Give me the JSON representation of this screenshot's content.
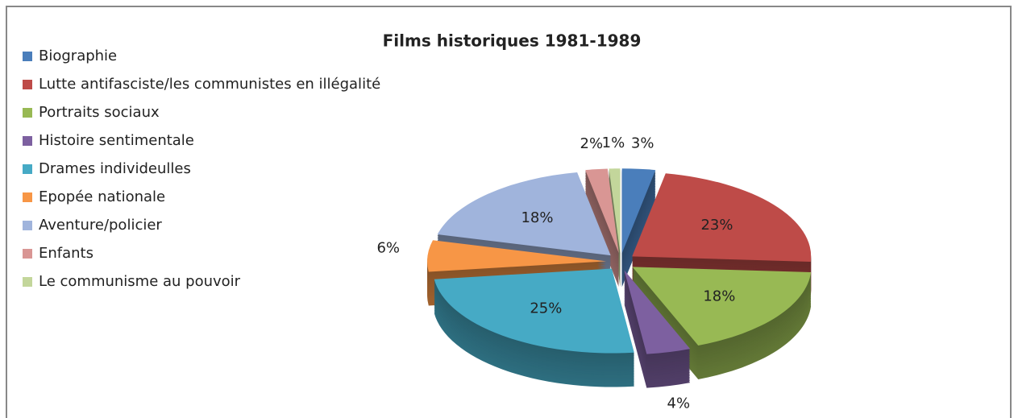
{
  "chart_data": {
    "type": "pie",
    "title": "Films historiques 1981-1989",
    "categories": [
      "Biographie",
      "Lutte antifasciste/les communistes en illégalité",
      "Portraits sociaux",
      "Histoire sentimentale",
      "Drames individeulles",
      "Epopée nationale",
      "Aventure/policier",
      "Enfants",
      "Le communisme au pouvoir"
    ],
    "values": [
      3,
      23,
      18,
      4,
      25,
      6,
      18,
      2,
      1
    ],
    "value_labels": [
      "3%",
      "23%",
      "18%",
      "4%",
      "25%",
      "6%",
      "18%",
      "2%",
      "1%"
    ],
    "colors": [
      "#4a7ebb",
      "#be4b48",
      "#98b954",
      "#7d60a0",
      "#46aac5",
      "#f79646",
      "#a0b4dc",
      "#d99694",
      "#c3d69b"
    ],
    "legend": "top-left"
  }
}
